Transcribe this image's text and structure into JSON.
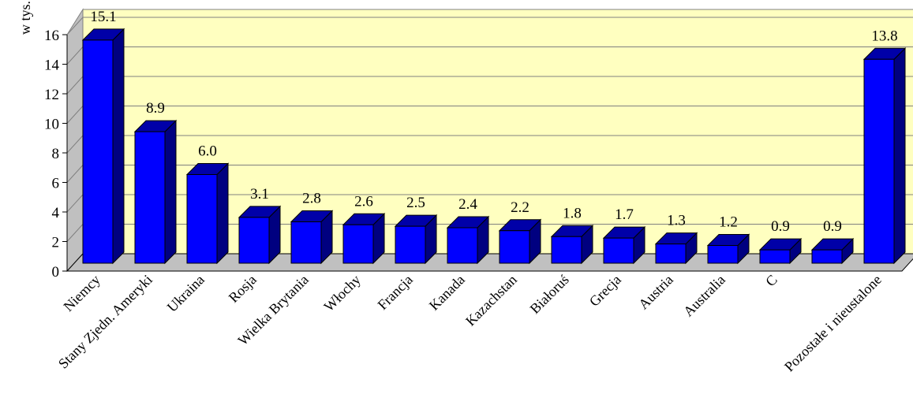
{
  "chart_data": {
    "type": "bar",
    "ylabel": "w tys.",
    "ylim": [
      0,
      16
    ],
    "yticks": [
      "0",
      "2",
      "4",
      "6",
      "8",
      "10",
      "12",
      "14",
      "16"
    ],
    "grid": true,
    "colors": {
      "bar_front": "#0000ff",
      "bar_top": "#0000a8",
      "bar_side": "#000080",
      "plot_background": "#ffffc0",
      "grid": "#808080"
    },
    "categories": [
      "Niemcy",
      "Stany Zjedn. Ameryki",
      "Ukraina",
      "Rosja",
      "Wielka Brytania",
      "Włochy",
      "Francja",
      "Kanada",
      "Kazachstan",
      "Białoruś",
      "Grecja",
      "Austria",
      "Australia",
      "C",
      "",
      "Pozostałe i nieustalone"
    ],
    "values": [
      15.1,
      8.9,
      6.0,
      3.1,
      2.8,
      2.6,
      2.5,
      2.4,
      2.2,
      1.8,
      1.7,
      1.3,
      1.2,
      0.9,
      0.9,
      13.8
    ],
    "data_labels": [
      "15.1",
      "8.9",
      "6.0",
      "3.1",
      "2.8",
      "2.6",
      "2.5",
      "2.4",
      "2.2",
      "1.8",
      "1.7",
      "1.3",
      "1.2",
      "0.9",
      "0.9",
      "13.8"
    ]
  }
}
